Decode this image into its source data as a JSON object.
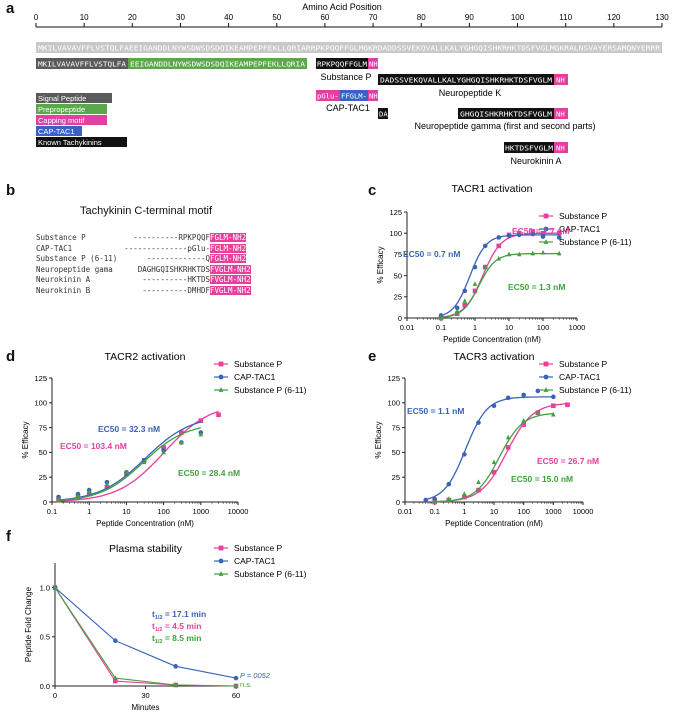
{
  "panels": {
    "a": "a",
    "b": "b",
    "c": "c",
    "d": "d",
    "e": "e",
    "f": "f"
  },
  "colors": {
    "sub_p": "#e83e9c",
    "cap": "#3a63b8",
    "sp611": "#3ea33e",
    "signal": "#5a5a5a",
    "prepro": "#5aa84a",
    "capping": "#e040a0",
    "captac": "#3a62c4",
    "known": "#111111",
    "grey": "#c8c8c8"
  },
  "panel_a": {
    "axis_title": "Amino Acid Position",
    "ticks": [
      "0",
      "10",
      "20",
      "30",
      "40",
      "50",
      "60",
      "70",
      "80",
      "90",
      "100",
      "110",
      "120",
      "130"
    ],
    "full_sequence": "MKILVAVAVFFLVSTQLFAEEIGANDDLNYWSDWSDSDQIKEAMPEPFEKLLQRIARRPKPQQFFGLMGKRDADDSSVEKQVALLKALYGHGQISHKRHKTDSFVGLMGKRALNSVAYERSAMQNYERRR",
    "seg_signal": "MKILVAVAVFFLVSTQLFA",
    "seg_prepro": "EEIGANDDLNYWSDWSDSDQIKEAMPEPFEKLLQRIA",
    "subp_black": "RPKPQQFFGLM",
    "subp_nh2": "NH",
    "subp_label": "Substance P",
    "nk_black": "DADSSVEKQVALLKALYGHGQISHKRHKTDSFVGLM",
    "nk_nh2": "NH",
    "nk_label": "Neuropeptide K",
    "cap_pglu": "pGlu-",
    "cap_blue": "FFGLM-",
    "cap_nh2": "NH",
    "cap_label": "CAP-TAC1",
    "da": "DA",
    "npg_black": "GHGQISHKRHKTDSFVGLM",
    "npg_nh2": "NH",
    "npg_label": "Neuropeptide gamma (first and second parts)",
    "nka_black": "HKTDSFVGLM",
    "nka_nh2": "NH",
    "nka_label": "Neurokinin A",
    "legend": [
      {
        "text": "Signal Peptide",
        "color": "#5a5a5a"
      },
      {
        "text": "Prepropeptide",
        "color": "#5aa84a"
      },
      {
        "text": "Capping motif",
        "color": "#e040a0"
      },
      {
        "text": "CAP-TAC1",
        "color": "#3a62c4"
      },
      {
        "text": "Known Tachykinins",
        "color": "#111111"
      }
    ]
  },
  "panel_b": {
    "title": "Tachykinin C-terminal motif",
    "rows": [
      {
        "name": "Substance P",
        "pre": "----------RPKPQQF",
        "mid": "F",
        "suf": "GLM-NH2"
      },
      {
        "name": "CAP-TAC1",
        "pre": "--------------pGlu-",
        "mid": "F",
        "suf": "GLM-NH2"
      },
      {
        "name": "Substance P (6-11)",
        "pre": "-------------Q",
        "mid": "F",
        "suf": "GLM-NH2"
      },
      {
        "name": "Neuropeptide gama",
        "pre": "DAGHGQISHKRHKTDS",
        "mid": "F",
        "suf": "VGLM-NH2"
      },
      {
        "name": "Neurokinin A",
        "pre": "----------HKTDS",
        "mid": "F",
        "suf": "VGLM-NH2"
      },
      {
        "name": "Neurokinin B",
        "pre": "----------DMHDF",
        "mid": "F",
        "suf": "VGLM-NH2"
      }
    ]
  },
  "chart_data": [
    {
      "id": "c",
      "type": "scatter",
      "title": "TACR1 activation",
      "xlabel": "Peptide Concentration (nM)",
      "ylabel": "% Efficacy",
      "xscale": "log",
      "xlim": [
        0.01,
        1000
      ],
      "ylim": [
        0,
        125
      ],
      "xticks": [
        "0.01",
        "0.1",
        "1",
        "10",
        "100",
        "1000"
      ],
      "yticks": [
        "0",
        "25",
        "50",
        "75",
        "100",
        "125"
      ],
      "series": [
        {
          "name": "Substance P",
          "marker": "square",
          "ec50": 1.7,
          "top": 100,
          "hill": 1.6,
          "x": [
            0.1,
            0.3,
            0.5,
            1,
            2,
            5,
            10,
            20,
            50,
            100,
            300
          ],
          "y": [
            0,
            5,
            15,
            32,
            60,
            85,
            98,
            100,
            102,
            100,
            100
          ]
        },
        {
          "name": "CAP-TAC1",
          "marker": "circle",
          "ec50": 0.7,
          "top": 98,
          "hill": 1.8,
          "x": [
            0.1,
            0.3,
            0.5,
            1,
            2,
            5,
            10,
            20,
            50,
            100,
            300
          ],
          "y": [
            3,
            12,
            32,
            60,
            85,
            95,
            97,
            98,
            99,
            96,
            95
          ]
        },
        {
          "name": "Substance P (6-11)",
          "marker": "triangle",
          "ec50": 1.3,
          "top": 76,
          "hill": 1.8,
          "x": [
            0.1,
            0.3,
            0.5,
            1,
            2,
            5,
            10,
            20,
            50,
            100,
            300
          ],
          "y": [
            0,
            8,
            20,
            40,
            60,
            70,
            75,
            75,
            76,
            77,
            76
          ]
        }
      ],
      "annotations": [
        {
          "text": "EC50 = 0.7 nM",
          "series": 1
        },
        {
          "text": "EC50 = 1.7 nM",
          "series": 0
        },
        {
          "text": "EC50 = 1.3 nM",
          "series": 2
        }
      ]
    },
    {
      "id": "d",
      "type": "scatter",
      "title": "TACR2 activation",
      "xlabel": "Peptide Concentration (nM)",
      "ylabel": "% Efficacy",
      "xscale": "log",
      "xlim": [
        0.1,
        10000
      ],
      "ylim": [
        0,
        125
      ],
      "xticks": [
        "0.1",
        "1",
        "10",
        "100",
        "1000",
        "10000"
      ],
      "yticks": [
        "0",
        "25",
        "50",
        "75",
        "100",
        "125"
      ],
      "series": [
        {
          "name": "Substance P",
          "marker": "square",
          "ec50": 103.4,
          "top": 100,
          "hill": 0.7,
          "x": [
            0.15,
            0.5,
            1,
            3,
            10,
            30,
            100,
            300,
            1000,
            3000
          ],
          "y": [
            2,
            5,
            8,
            15,
            28,
            42,
            55,
            70,
            82,
            88
          ]
        },
        {
          "name": "CAP-TAC1",
          "marker": "circle",
          "ec50": 32.3,
          "top": 88,
          "hill": 0.7,
          "x": [
            0.15,
            0.5,
            1,
            3,
            10,
            30,
            100,
            300,
            1000
          ],
          "y": [
            5,
            8,
            12,
            20,
            30,
            42,
            52,
            60,
            70
          ]
        },
        {
          "name": "Substance P (6-11)",
          "marker": "triangle",
          "ec50": 28.4,
          "top": 80,
          "hill": 0.75,
          "x": [
            0.15,
            0.5,
            1,
            3,
            10,
            30,
            100,
            300,
            1000
          ],
          "y": [
            3,
            6,
            10,
            18,
            30,
            40,
            50,
            60,
            68
          ]
        }
      ],
      "annotations": [
        {
          "text": "EC50 = 32.3 nM",
          "series": 1
        },
        {
          "text": "EC50 = 103.4 nM",
          "series": 0
        },
        {
          "text": "EC50 = 28.4 nM",
          "series": 2
        }
      ]
    },
    {
      "id": "e",
      "type": "scatter",
      "title": "TACR3 activation",
      "xlabel": "Peptide Concentration (nM)",
      "ylabel": "% Efficacy",
      "xscale": "log",
      "xlim": [
        0.01,
        10000
      ],
      "ylim": [
        0,
        125
      ],
      "xticks": [
        "0.01",
        "0.1",
        "1",
        "10",
        "100",
        "1000",
        "10000"
      ],
      "yticks": [
        "0",
        "25",
        "50",
        "75",
        "100",
        "125"
      ],
      "series": [
        {
          "name": "Substance P",
          "marker": "square",
          "ec50": 26.7,
          "top": 100,
          "hill": 1.0,
          "x": [
            0.1,
            0.3,
            1,
            3,
            10,
            30,
            100,
            300,
            1000,
            3000
          ],
          "y": [
            0,
            2,
            5,
            12,
            30,
            55,
            78,
            90,
            97,
            98
          ]
        },
        {
          "name": "CAP-TAC1",
          "marker": "circle",
          "ec50": 1.1,
          "top": 106,
          "hill": 1.2,
          "x": [
            0.05,
            0.1,
            0.3,
            1,
            3,
            10,
            30,
            100,
            300,
            1000
          ],
          "y": [
            2,
            3,
            18,
            48,
            80,
            97,
            105,
            108,
            112,
            106
          ]
        },
        {
          "name": "Substance P (6-11)",
          "marker": "triangle",
          "ec50": 15.0,
          "top": 90,
          "hill": 1.1,
          "x": [
            0.1,
            0.3,
            1,
            3,
            10,
            30,
            100,
            300,
            1000
          ],
          "y": [
            0,
            3,
            8,
            20,
            40,
            65,
            82,
            90,
            88
          ]
        }
      ],
      "annotations": [
        {
          "text": "EC50 = 1.1 nM",
          "series": 1
        },
        {
          "text": "EC50 = 26.7 nM",
          "series": 0
        },
        {
          "text": "EC50 = 15.0 nM",
          "series": 2
        }
      ]
    },
    {
      "id": "f",
      "type": "line",
      "title": "Plasma stability",
      "xlabel": "Minutes",
      "ylabel": "Peptide Fold Change",
      "xscale": "linear",
      "xlim": [
        0,
        60
      ],
      "ylim": [
        0,
        1.25
      ],
      "xticks": [
        "0",
        "30",
        "60"
      ],
      "yticks": [
        "0.0",
        "0.5",
        "1.0"
      ],
      "series": [
        {
          "name": "Substance P",
          "marker": "square",
          "x": [
            0,
            20,
            40,
            60
          ],
          "y": [
            1.0,
            0.05,
            0.01,
            0.0
          ]
        },
        {
          "name": "CAP-TAC1",
          "marker": "circle",
          "x": [
            0,
            20,
            40,
            60
          ],
          "y": [
            1.0,
            0.46,
            0.2,
            0.08
          ]
        },
        {
          "name": "Substance P (6-11)",
          "marker": "triangle",
          "x": [
            0,
            20,
            40,
            60
          ],
          "y": [
            1.0,
            0.08,
            0.01,
            0.0
          ]
        }
      ],
      "halflife": [
        {
          "pre": "t",
          "sub": "1/2",
          "post": " = 17.1 min",
          "series": 1
        },
        {
          "pre": "t",
          "sub": "1/2",
          "post": " = 4.5 min",
          "series": 0
        },
        {
          "pre": "t",
          "sub": "1/2",
          "post": " = 8.5 min",
          "series": 2
        }
      ],
      "pvalue": "P = 0052",
      "ns": "n.s."
    }
  ]
}
